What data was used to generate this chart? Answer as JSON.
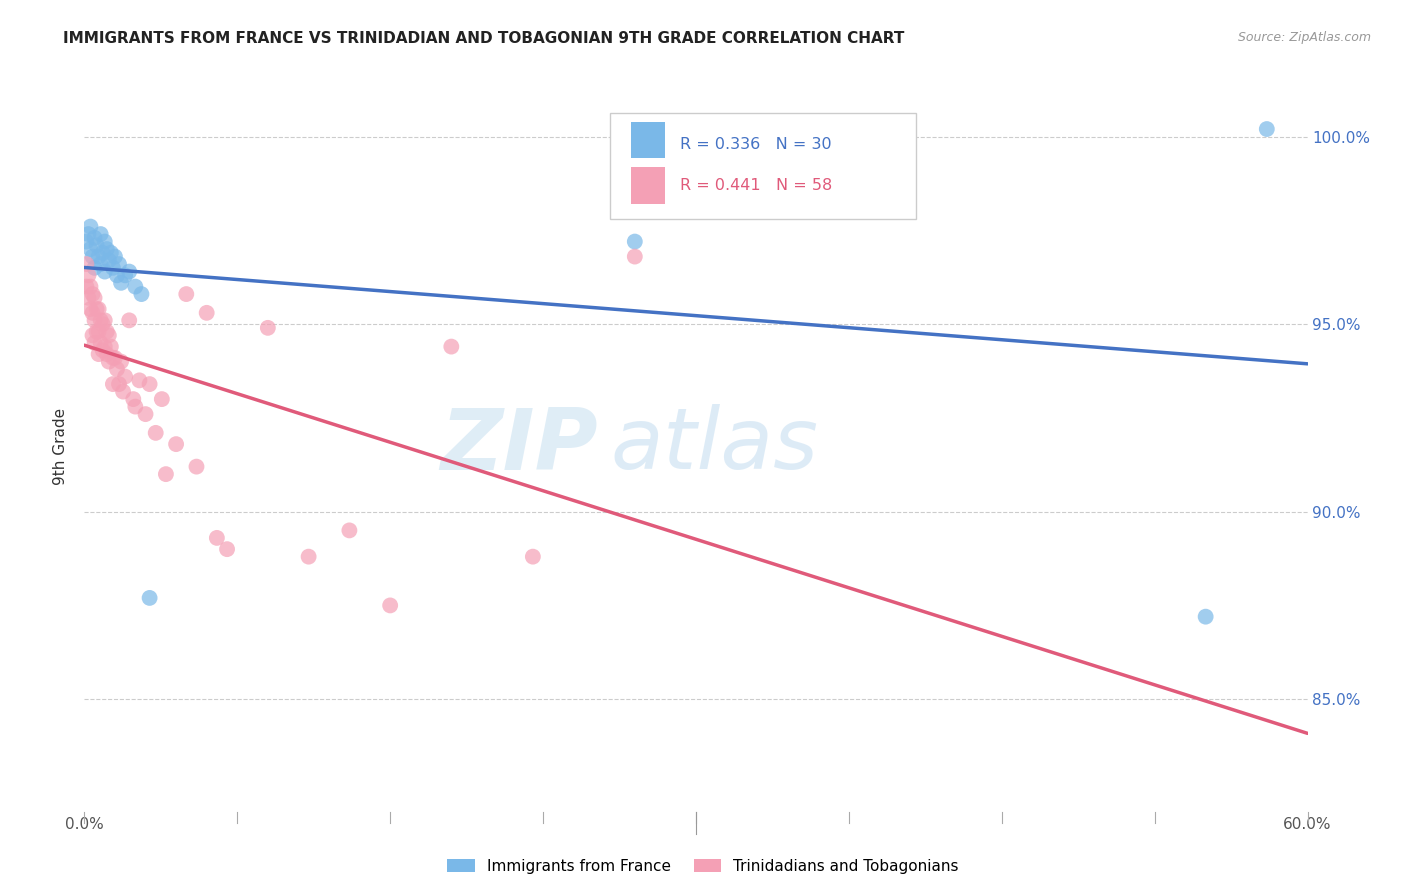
{
  "title": "IMMIGRANTS FROM FRANCE VS TRINIDADIAN AND TOBAGONIAN 9TH GRADE CORRELATION CHART",
  "source": "Source: ZipAtlas.com",
  "ylabel": "9th Grade",
  "ytick_labels": [
    "100.0%",
    "95.0%",
    "90.0%",
    "85.0%"
  ],
  "ytick_values": [
    1.0,
    0.95,
    0.9,
    0.85
  ],
  "xlim": [
    0.0,
    0.6
  ],
  "ylim": [
    0.82,
    1.015
  ],
  "legend1_R": "0.336",
  "legend1_N": "30",
  "legend2_R": "0.441",
  "legend2_N": "58",
  "color_blue": "#7ab8e8",
  "color_pink": "#f4a0b5",
  "color_blue_line": "#4472c4",
  "color_pink_line": "#e05a7a",
  "watermark_zip": "ZIP",
  "watermark_atlas": "atlas",
  "blue_x": [
    0.001,
    0.002,
    0.003,
    0.003,
    0.004,
    0.005,
    0.005,
    0.006,
    0.007,
    0.008,
    0.008,
    0.009,
    0.01,
    0.01,
    0.011,
    0.012,
    0.013,
    0.014,
    0.015,
    0.016,
    0.017,
    0.018,
    0.02,
    0.022,
    0.025,
    0.028,
    0.032,
    0.27,
    0.55,
    0.58
  ],
  "blue_y": [
    0.972,
    0.974,
    0.97,
    0.976,
    0.968,
    0.973,
    0.965,
    0.971,
    0.968,
    0.974,
    0.966,
    0.969,
    0.972,
    0.964,
    0.97,
    0.967,
    0.969,
    0.965,
    0.968,
    0.963,
    0.966,
    0.961,
    0.963,
    0.964,
    0.96,
    0.958,
    0.877,
    0.972,
    0.872,
    1.002
  ],
  "pink_x": [
    0.001,
    0.001,
    0.002,
    0.002,
    0.003,
    0.003,
    0.004,
    0.004,
    0.004,
    0.005,
    0.005,
    0.005,
    0.006,
    0.006,
    0.007,
    0.007,
    0.007,
    0.008,
    0.008,
    0.009,
    0.009,
    0.01,
    0.01,
    0.011,
    0.011,
    0.012,
    0.012,
    0.013,
    0.014,
    0.014,
    0.015,
    0.016,
    0.017,
    0.018,
    0.019,
    0.02,
    0.022,
    0.024,
    0.025,
    0.027,
    0.03,
    0.032,
    0.035,
    0.038,
    0.04,
    0.045,
    0.05,
    0.055,
    0.06,
    0.065,
    0.07,
    0.09,
    0.11,
    0.13,
    0.15,
    0.18,
    0.22,
    0.27
  ],
  "pink_y": [
    0.966,
    0.96,
    0.963,
    0.957,
    0.96,
    0.954,
    0.958,
    0.953,
    0.947,
    0.957,
    0.951,
    0.945,
    0.954,
    0.948,
    0.954,
    0.948,
    0.942,
    0.951,
    0.945,
    0.95,
    0.943,
    0.951,
    0.944,
    0.948,
    0.942,
    0.947,
    0.94,
    0.944,
    0.941,
    0.934,
    0.941,
    0.938,
    0.934,
    0.94,
    0.932,
    0.936,
    0.951,
    0.93,
    0.928,
    0.935,
    0.926,
    0.934,
    0.921,
    0.93,
    0.91,
    0.918,
    0.958,
    0.912,
    0.953,
    0.893,
    0.89,
    0.949,
    0.888,
    0.895,
    0.875,
    0.944,
    0.888,
    0.968
  ]
}
